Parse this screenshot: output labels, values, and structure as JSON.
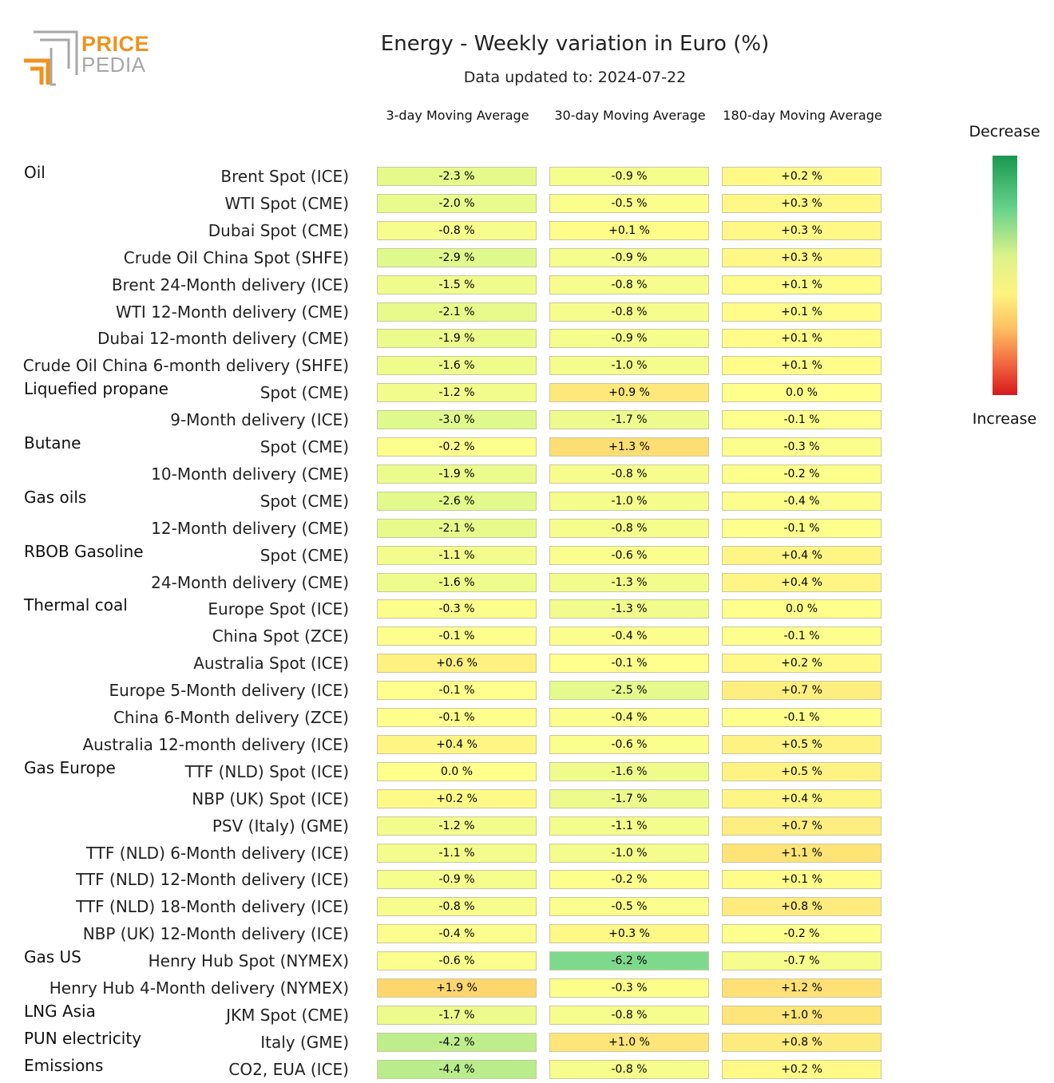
{
  "logo": {
    "line1": "PRICE",
    "line2": "PEDIA"
  },
  "chart_data": {
    "type": "heatmap",
    "title": "Energy - Weekly variation in Euro (%)",
    "subtitle": "Data updated to: 2024-07-22",
    "columns": [
      "3-day Moving Average",
      "30-day Moving Average",
      "180-day Moving Average"
    ],
    "legend": {
      "top": "Decrease",
      "bottom": "Increase",
      "placement": "right"
    },
    "unit": "%",
    "groups": [
      {
        "name": "Oil",
        "rows": [
          {
            "label": "Brent Spot (ICE)",
            "values": [
              -2.3,
              -0.9,
              0.2
            ]
          },
          {
            "label": "WTI Spot (CME)",
            "values": [
              -2.0,
              -0.5,
              0.3
            ]
          },
          {
            "label": "Dubai Spot (CME)",
            "values": [
              -0.8,
              0.1,
              0.3
            ]
          },
          {
            "label": "Crude Oil China Spot (SHFE)",
            "values": [
              -2.9,
              -0.9,
              0.3
            ]
          },
          {
            "label": "Brent 24-Month delivery (ICE)",
            "values": [
              -1.5,
              -0.8,
              0.1
            ]
          },
          {
            "label": "WTI 12-Month delivery (CME)",
            "values": [
              -2.1,
              -0.8,
              0.1
            ]
          },
          {
            "label": "Dubai 12-month delivery (CME)",
            "values": [
              -1.9,
              -0.9,
              0.1
            ]
          },
          {
            "label": "Crude Oil China 6-month delivery (SHFE)",
            "values": [
              -1.6,
              -1.0,
              0.1
            ]
          }
        ]
      },
      {
        "name": "Liquefied propane",
        "rows": [
          {
            "label": "Spot (CME)",
            "values": [
              -1.2,
              0.9,
              0.0
            ]
          },
          {
            "label": "9-Month delivery (ICE)",
            "values": [
              -3.0,
              -1.7,
              -0.1
            ]
          }
        ]
      },
      {
        "name": "Butane",
        "rows": [
          {
            "label": "Spot (CME)",
            "values": [
              -0.2,
              1.3,
              -0.3
            ]
          },
          {
            "label": "10-Month delivery (CME)",
            "values": [
              -1.9,
              -0.8,
              -0.2
            ]
          }
        ]
      },
      {
        "name": "Gas oils",
        "rows": [
          {
            "label": "Spot (CME)",
            "values": [
              -2.6,
              -1.0,
              -0.4
            ]
          },
          {
            "label": "12-Month delivery (CME)",
            "values": [
              -2.1,
              -0.8,
              -0.1
            ]
          }
        ]
      },
      {
        "name": "RBOB Gasoline",
        "rows": [
          {
            "label": "Spot (CME)",
            "values": [
              -1.1,
              -0.6,
              0.4
            ]
          },
          {
            "label": "24-Month delivery (CME)",
            "values": [
              -1.6,
              -1.3,
              0.4
            ]
          }
        ]
      },
      {
        "name": "Thermal coal",
        "rows": [
          {
            "label": "Europe Spot (ICE)",
            "values": [
              -0.3,
              -1.3,
              0.0
            ]
          },
          {
            "label": "China Spot (ZCE)",
            "values": [
              -0.1,
              -0.4,
              -0.1
            ]
          },
          {
            "label": "Australia Spot (ICE)",
            "values": [
              0.6,
              -0.1,
              0.2
            ]
          },
          {
            "label": "Europe 5-Month delivery (ICE)",
            "values": [
              -0.1,
              -2.5,
              0.7
            ]
          },
          {
            "label": "China 6-Month delivery (ZCE)",
            "values": [
              -0.1,
              -0.4,
              -0.1
            ]
          },
          {
            "label": "Australia 12-month delivery (ICE)",
            "values": [
              0.4,
              -0.6,
              0.5
            ]
          }
        ]
      },
      {
        "name": "Gas Europe",
        "rows": [
          {
            "label": "TTF (NLD) Spot (ICE)",
            "values": [
              0.0,
              -1.6,
              0.5
            ]
          },
          {
            "label": "NBP (UK) Spot (ICE)",
            "values": [
              0.2,
              -1.7,
              0.4
            ]
          },
          {
            "label": "PSV (Italy) (GME)",
            "values": [
              -1.2,
              -1.1,
              0.7
            ]
          },
          {
            "label": "TTF (NLD) 6-Month delivery (ICE)",
            "values": [
              -1.1,
              -1.0,
              1.1
            ]
          },
          {
            "label": "TTF (NLD) 12-Month delivery (ICE)",
            "values": [
              -0.9,
              -0.2,
              0.1
            ]
          },
          {
            "label": "TTF (NLD) 18-Month delivery (ICE)",
            "values": [
              -0.8,
              -0.5,
              0.8
            ]
          },
          {
            "label": "NBP (UK) 12-Month delivery (ICE)",
            "values": [
              -0.4,
              0.3,
              -0.2
            ]
          }
        ]
      },
      {
        "name": "Gas US",
        "rows": [
          {
            "label": "Henry Hub Spot (NYMEX)",
            "values": [
              -0.6,
              -6.2,
              -0.7
            ]
          },
          {
            "label": "Henry Hub 4-Month delivery (NYMEX)",
            "values": [
              1.9,
              -0.3,
              1.2
            ]
          }
        ]
      },
      {
        "name": "LNG Asia",
        "rows": [
          {
            "label": "JKM Spot (CME)",
            "values": [
              -1.7,
              -0.8,
              1.0
            ]
          }
        ]
      },
      {
        "name": "PUN electricity",
        "rows": [
          {
            "label": "Italy (GME)",
            "values": [
              -4.2,
              1.0,
              0.8
            ]
          }
        ]
      },
      {
        "name": "Emissions",
        "rows": [
          {
            "label": "CO2, EUA (ICE)",
            "values": [
              -4.4,
              -0.8,
              0.2
            ]
          }
        ]
      }
    ]
  }
}
